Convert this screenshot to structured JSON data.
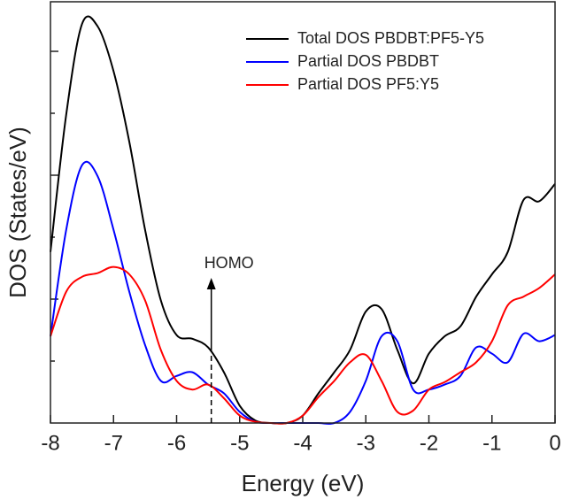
{
  "chart_data": {
    "type": "line",
    "x_label": "Energy (eV)",
    "y_label": "DOS (States/eV)",
    "x": [
      -8,
      -7.75,
      -7.5,
      -7.25,
      -7,
      -6.75,
      -6.5,
      -6.25,
      -6,
      -5.75,
      -5.5,
      -5.25,
      -5,
      -4.75,
      -4.5,
      -4.25,
      -4,
      -3.75,
      -3.5,
      -3.25,
      -3,
      -2.75,
      -2.5,
      -2.25,
      -2,
      -1.75,
      -1.5,
      -1.25,
      -1,
      -0.75,
      -0.5,
      -0.25,
      0
    ],
    "series": [
      {
        "name": "Total DOS PBDBT:PF5-Y5",
        "color": "#000000",
        "values": [
          1.38,
          2.49,
          3.22,
          3.2,
          2.84,
          2.27,
          1.56,
          0.99,
          0.71,
          0.68,
          0.61,
          0.41,
          0.14,
          0.02,
          0,
          0,
          0.06,
          0.24,
          0.41,
          0.59,
          0.9,
          0.92,
          0.59,
          0.32,
          0.56,
          0.7,
          0.78,
          1.02,
          1.2,
          1.38,
          1.8,
          1.79,
          1.93
        ]
      },
      {
        "name": "Partial DOS PBDBT",
        "color": "#0000ff",
        "values": [
          0.7,
          1.56,
          2.08,
          1.99,
          1.56,
          1.06,
          0.63,
          0.34,
          0.38,
          0.41,
          0.31,
          0.24,
          0.09,
          0.01,
          0,
          0,
          0,
          0,
          0,
          0.09,
          0.34,
          0.7,
          0.66,
          0.27,
          0.27,
          0.31,
          0.38,
          0.61,
          0.56,
          0.49,
          0.72,
          0.66,
          0.71
        ]
      },
      {
        "name": "Partial DOS PF5:Y5",
        "color": "#ff0000",
        "values": [
          0.7,
          1.06,
          1.18,
          1.21,
          1.26,
          1.2,
          0.99,
          0.59,
          0.34,
          0.27,
          0.31,
          0.2,
          0.06,
          0.01,
          0,
          0,
          0.06,
          0.21,
          0.34,
          0.49,
          0.55,
          0.34,
          0.09,
          0.1,
          0.27,
          0.33,
          0.41,
          0.49,
          0.66,
          0.95,
          1.02,
          1.09,
          1.2
        ]
      }
    ],
    "xlim": [
      -8,
      0
    ],
    "xticks": [
      -8,
      -7,
      -6,
      -5,
      -4,
      -3,
      -2,
      -1,
      0
    ],
    "ylim": [
      0,
      3.4
    ],
    "yticks": [
      0.5,
      1,
      1.5,
      2,
      2.5,
      3
    ],
    "annotations": [
      {
        "text": "HOMO",
        "x": -5.45
      }
    ],
    "legend": "upper right"
  }
}
